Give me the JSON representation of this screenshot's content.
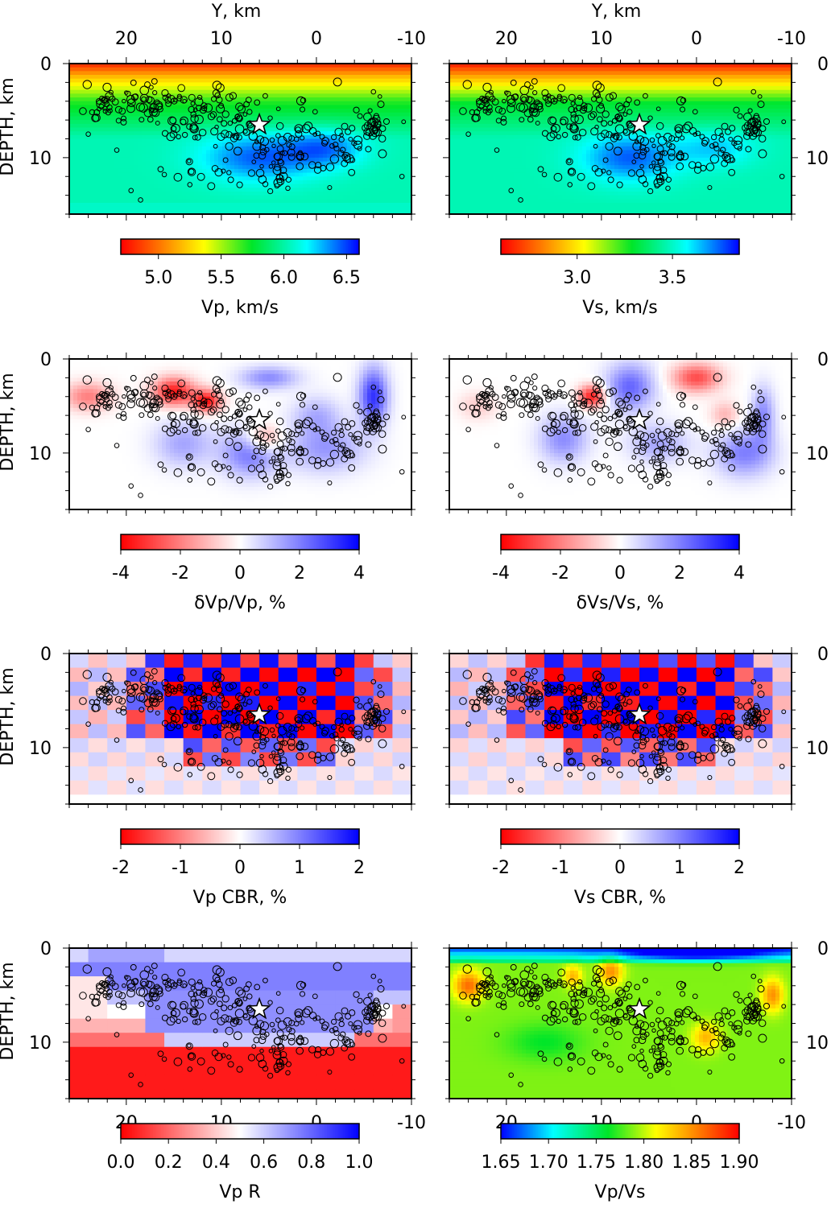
{
  "colors": {
    "red": "#ff0000",
    "white": "#ffffff",
    "blue": "#0000ff",
    "frame": "#000000"
  },
  "top_axis": {
    "label": "Y, km",
    "ticks": [
      "20",
      "10",
      "0",
      "-10"
    ]
  },
  "bottom_axis": {
    "ticks": [
      "20",
      "10",
      "0",
      "-10"
    ]
  },
  "depth_axis": {
    "label": "DEPTH, km",
    "ticks": [
      "0",
      "10"
    ]
  },
  "chart_data": [
    {
      "id": "vp",
      "type": "heatmap",
      "xlim": [
        26,
        -10
      ],
      "ylim": [
        0,
        16
      ],
      "colorbar": {
        "label": "Vp, km/s",
        "range": [
          4.7,
          6.6
        ],
        "ticks": [
          "5.0",
          "5.5",
          "6.0",
          "6.5"
        ],
        "tick_values": [
          5.0,
          5.5,
          6.0,
          6.5
        ],
        "palette": "rainbow"
      }
    },
    {
      "id": "vs",
      "type": "heatmap",
      "xlim": [
        26,
        -10
      ],
      "ylim": [
        0,
        16
      ],
      "colorbar": {
        "label": "Vs, km/s",
        "range": [
          2.6,
          3.85
        ],
        "ticks": [
          "3.0",
          "3.5"
        ],
        "tick_values": [
          3.0,
          3.5
        ],
        "palette": "rainbow"
      }
    },
    {
      "id": "dvp",
      "type": "heatmap",
      "xlim": [
        26,
        -10
      ],
      "ylim": [
        0,
        16
      ],
      "colorbar": {
        "label": "δVp/Vp, %",
        "range": [
          -4,
          4
        ],
        "ticks": [
          "-4",
          "-2",
          "0",
          "2",
          "4"
        ],
        "tick_values": [
          -4,
          -2,
          0,
          2,
          4
        ],
        "palette": "diverging"
      }
    },
    {
      "id": "dvs",
      "type": "heatmap",
      "xlim": [
        26,
        -10
      ],
      "ylim": [
        0,
        16
      ],
      "colorbar": {
        "label": "δVs/Vs, %",
        "range": [
          -4,
          4
        ],
        "ticks": [
          "-4",
          "-2",
          "0",
          "2",
          "4"
        ],
        "tick_values": [
          -4,
          -2,
          0,
          2,
          4
        ],
        "palette": "diverging"
      }
    },
    {
      "id": "vpcbr",
      "type": "heatmap",
      "xlim": [
        26,
        -10
      ],
      "ylim": [
        0,
        16
      ],
      "colorbar": {
        "label": "Vp CBR, %",
        "range": [
          -2,
          2
        ],
        "ticks": [
          "-2",
          "-1",
          "0",
          "1",
          "2"
        ],
        "tick_values": [
          -2,
          -1,
          0,
          1,
          2
        ],
        "palette": "diverging"
      }
    },
    {
      "id": "vscbr",
      "type": "heatmap",
      "xlim": [
        26,
        -10
      ],
      "ylim": [
        0,
        16
      ],
      "colorbar": {
        "label": "Vs CBR, %",
        "range": [
          -2,
          2
        ],
        "ticks": [
          "-2",
          "-1",
          "0",
          "1",
          "2"
        ],
        "tick_values": [
          -2,
          -1,
          0,
          1,
          2
        ],
        "palette": "diverging"
      }
    },
    {
      "id": "vpr",
      "type": "heatmap",
      "xlim": [
        26,
        -10
      ],
      "ylim": [
        0,
        16
      ],
      "colorbar": {
        "label": "Vp R",
        "range": [
          0,
          1
        ],
        "ticks": [
          "0.0",
          "0.2",
          "0.4",
          "0.6",
          "0.8",
          "1.0"
        ],
        "tick_values": [
          0,
          0.2,
          0.4,
          0.6,
          0.8,
          1.0
        ],
        "palette": "diverging"
      }
    },
    {
      "id": "vpvs",
      "type": "heatmap",
      "xlim": [
        26,
        -10
      ],
      "ylim": [
        0,
        16
      ],
      "colorbar": {
        "label": "Vp/Vs",
        "range": [
          1.65,
          1.9
        ],
        "ticks": [
          "1.65",
          "1.70",
          "1.75",
          "1.80",
          "1.85",
          "1.90"
        ],
        "tick_values": [
          1.65,
          1.7,
          1.75,
          1.8,
          1.85,
          1.9
        ],
        "palette": "rainbow_reversed"
      }
    }
  ],
  "mainshock": {
    "y": 6,
    "depth": 6.5
  },
  "seismicity": {
    "clusters": [
      {
        "y": 18,
        "depth": 4.3,
        "sy": 3.5,
        "sd": 1.0,
        "n": 70
      },
      {
        "y": 22.5,
        "depth": 4.0,
        "sy": 0.8,
        "sd": 0.8,
        "n": 12
      },
      {
        "y": 11.5,
        "depth": 5.0,
        "sy": 1.5,
        "sd": 1.0,
        "n": 20
      },
      {
        "y": 14.5,
        "depth": 7.0,
        "sy": 1.5,
        "sd": 1.0,
        "n": 14
      },
      {
        "y": 8.5,
        "depth": 7.5,
        "sy": 1.5,
        "sd": 1.5,
        "n": 22
      },
      {
        "y": 5,
        "depth": 9.5,
        "sy": 2.5,
        "sd": 1.8,
        "n": 40
      },
      {
        "y": 1,
        "depth": 8.5,
        "sy": 3.0,
        "sd": 1.5,
        "n": 40
      },
      {
        "y": -4,
        "depth": 9.0,
        "sy": 1.5,
        "sd": 1.3,
        "n": 20
      },
      {
        "y": -6.3,
        "depth": 6.2,
        "sy": 0.5,
        "sd": 1.6,
        "n": 28
      },
      {
        "y": 12,
        "depth": 11.5,
        "sy": 2.5,
        "sd": 0.8,
        "n": 14
      },
      {
        "y": 4,
        "depth": 12.0,
        "sy": 2.5,
        "sd": 0.7,
        "n": 12
      },
      {
        "y": 10,
        "depth": 3.5,
        "sy": 3.0,
        "sd": 0.8,
        "n": 10
      },
      {
        "y": 2,
        "depth": 4.8,
        "sy": 4.0,
        "sd": 1.0,
        "n": 12
      }
    ],
    "isolated": [
      [
        24,
        7.5
      ],
      [
        21,
        9.2
      ],
      [
        19.5,
        13.5
      ],
      [
        18.5,
        14.5
      ],
      [
        16,
        11.8
      ],
      [
        -9,
        12
      ],
      [
        -6,
        3
      ]
    ]
  }
}
